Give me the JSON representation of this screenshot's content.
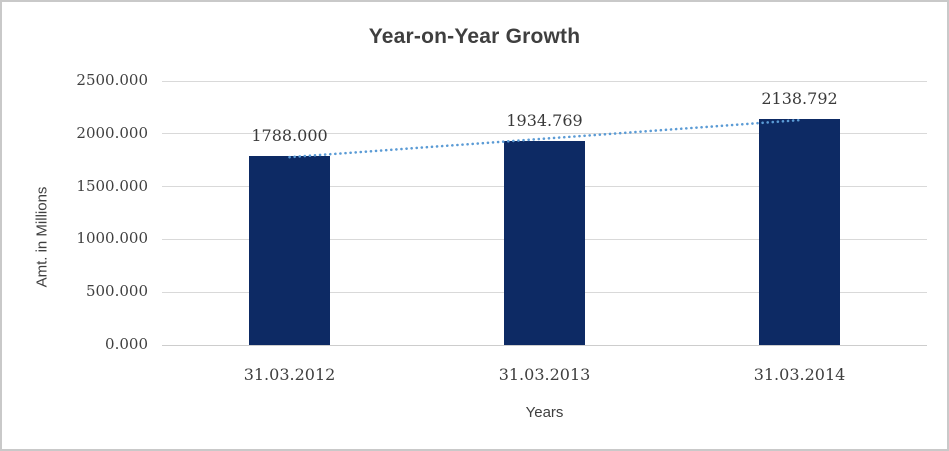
{
  "window": {
    "background": "#ffffff",
    "border_color": "#c9c9c9"
  },
  "chart_data": {
    "type": "bar",
    "title": "Year-on-Year Growth",
    "xlabel": "Years",
    "ylabel": "Amt. in Millions",
    "categories": [
      "31.03.2012",
      "31.03.2013",
      "31.03.2014"
    ],
    "values": [
      1788.0,
      1934.769,
      2138.792
    ],
    "data_labels": [
      "1788.000",
      "1934.769",
      "2138.792"
    ],
    "ylim": [
      0,
      2500
    ],
    "yticks": [
      0,
      500,
      1000,
      1500,
      2000,
      2500
    ],
    "ytick_labels": [
      "0.000",
      "500.000",
      "1000.000",
      "1500.000",
      "2000.000",
      "2500.000"
    ],
    "grid": true,
    "legend": "none",
    "bar_color": "#0d2a64",
    "gridline_color": "#d9d9d9",
    "trendline": {
      "type": "linear",
      "style": "dotted",
      "color": "#5b9bd5"
    }
  }
}
